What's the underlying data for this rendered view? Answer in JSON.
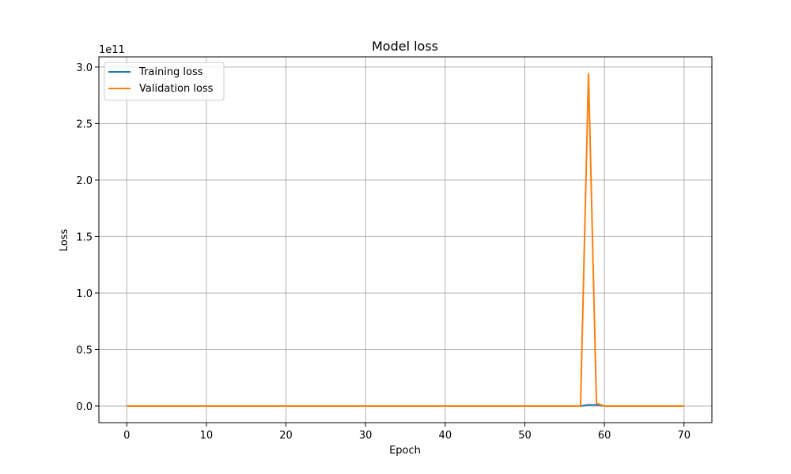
{
  "chart_data": {
    "type": "line",
    "title": "Model loss",
    "xlabel": "Epoch",
    "ylabel": "Loss",
    "y_offset_text": "1e11",
    "xlim": [
      -3.5,
      73.5
    ],
    "ylim": [
      -14700000000.0,
      309000000000.0
    ],
    "xticks": [
      0,
      10,
      20,
      30,
      40,
      50,
      60,
      70
    ],
    "xtick_labels": [
      "0",
      "10",
      "20",
      "30",
      "40",
      "50",
      "60",
      "70"
    ],
    "yticks": [
      0,
      50000000000.0,
      100000000000.0,
      150000000000.0,
      200000000000.0,
      250000000000.0,
      300000000000.0
    ],
    "ytick_labels": [
      "0.0",
      "0.5",
      "1.0",
      "1.5",
      "2.0",
      "2.5",
      "3.0"
    ],
    "grid": true,
    "legend_position": "upper-left",
    "series": [
      {
        "name": "Training loss",
        "color": "#1f77b4",
        "points": [
          [
            0,
            0
          ],
          [
            57,
            0
          ],
          [
            58,
            1000000000.0
          ],
          [
            59,
            1000000000.0
          ],
          [
            60,
            0
          ],
          [
            70,
            0
          ]
        ]
      },
      {
        "name": "Validation loss",
        "color": "#ff7f0e",
        "points": [
          [
            0,
            0
          ],
          [
            57,
            0
          ],
          [
            58,
            294000000000.0
          ],
          [
            59,
            2500000000.0
          ],
          [
            60,
            0
          ],
          [
            70,
            0
          ]
        ]
      }
    ]
  }
}
